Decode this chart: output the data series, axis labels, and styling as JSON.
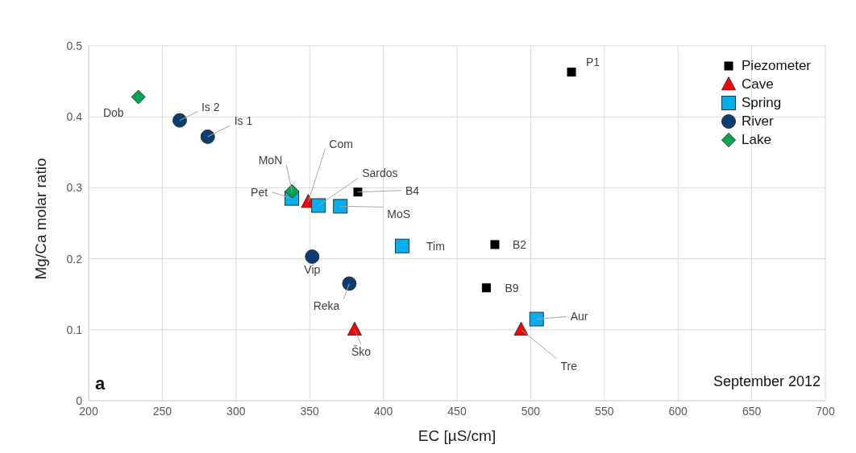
{
  "chart_data": {
    "type": "scatter",
    "xlabel": "EC [µS/cm]",
    "ylabel": "Mg/Ca molar ratio",
    "xlim": [
      200,
      700
    ],
    "xticks": [
      200,
      250,
      300,
      350,
      400,
      450,
      500,
      550,
      600,
      650,
      700
    ],
    "ylim": [
      0,
      0.5
    ],
    "yticks": [
      0,
      0.1,
      0.2,
      0.3,
      0.4,
      0.5
    ],
    "grid": true,
    "legend": "top right",
    "series": [
      {
        "name": "Piezometer",
        "color": "#000000",
        "marker": "square",
        "x": [
          527.7,
          382.7,
          475.7,
          469.9
        ],
        "values": [
          0.463,
          0.294,
          0.22,
          0.159
        ]
      },
      {
        "name": "Cave",
        "color": "#ff0000",
        "marker": "triangle",
        "x": [
          349,
          380.5,
          493.5
        ],
        "values": [
          0.28,
          0.1,
          0.1
        ]
      },
      {
        "name": "Spring",
        "color": "#00b0f0",
        "marker": "square",
        "x": [
          337.9,
          356,
          370.8,
          412.8,
          504
        ],
        "values": [
          0.285,
          0.275,
          0.274,
          0.218,
          0.115
        ]
      },
      {
        "name": "River",
        "color": "#0b3d73",
        "marker": "circle",
        "x": [
          261.8,
          280.8,
          351.7,
          376.9
        ],
        "values": [
          0.395,
          0.372,
          0.203,
          0.165
        ]
      },
      {
        "name": "Lake",
        "color": "#00a651",
        "marker": "diamond",
        "x": [
          233.7,
          338
        ],
        "values": [
          0.428,
          0.295
        ]
      }
    ],
    "annotations": [
      {
        "text": "P1",
        "x": 527.7,
        "y": 0.463
      },
      {
        "text": "B4",
        "x": 382.7,
        "y": 0.294
      },
      {
        "text": "B2",
        "x": 475.7,
        "y": 0.22
      },
      {
        "text": "B9",
        "x": 469.9,
        "y": 0.159
      },
      {
        "text": "Com",
        "x": 349,
        "y": 0.28
      },
      {
        "text": "Ško",
        "x": 380.5,
        "y": 0.1
      },
      {
        "text": "Tre",
        "x": 493.5,
        "y": 0.1
      },
      {
        "text": "Pet",
        "x": 337.9,
        "y": 0.285
      },
      {
        "text": "Sardos",
        "x": 356,
        "y": 0.275
      },
      {
        "text": "MoS",
        "x": 370.8,
        "y": 0.274
      },
      {
        "text": "Tim",
        "x": 412.8,
        "y": 0.218
      },
      {
        "text": "Aur",
        "x": 504,
        "y": 0.115
      },
      {
        "text": "Is 2",
        "x": 261.8,
        "y": 0.395
      },
      {
        "text": "Is 1",
        "x": 280.8,
        "y": 0.372
      },
      {
        "text": "Vip",
        "x": 351.7,
        "y": 0.203
      },
      {
        "text": "Reka",
        "x": 376.9,
        "y": 0.165
      },
      {
        "text": "Dob",
        "x": 233.7,
        "y": 0.428
      },
      {
        "text": "MoN",
        "x": 338,
        "y": 0.295
      },
      "a",
      "September 2012"
    ]
  }
}
